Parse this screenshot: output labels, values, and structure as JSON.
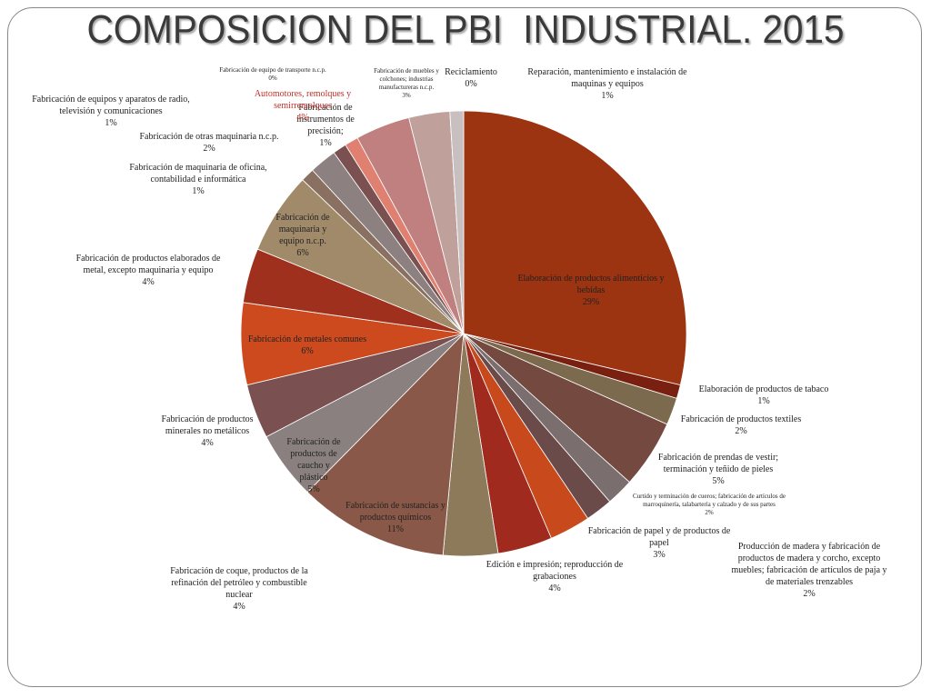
{
  "chart_data": {
    "type": "pie",
    "title": "COMPOSICION DEL PBI  INDUSTRIAL. 2015",
    "categories": [
      "Elaboración de productos alimenticios y bebidas",
      "Elaboración de productos de tabaco",
      "Fabricación de productos textiles",
      "Fabricación de prendas de vestir; terminación y teñido de pieles",
      "Curtido y terminación de cueros; fabricación de artículos de marroquinería, talabartería y calzado y de sus partes",
      "Producción de madera y fabricación de productos de madera y corcho, excepto muebles; fabricación de artículos de paja y de materiales trenzables",
      "Fabricación de papel y de  productos de papel",
      "Edición e impresión; reproducción de grabaciones",
      "Fabricación de coque, productos de la refinación del petróleo y combustible nuclear",
      "Fabricación de sustancias y productos químicos",
      "Fabricación de productos de caucho y plástico",
      "Fabricación de productos minerales no metálicos",
      "Fabricación de metales comunes",
      "Fabricación de productos elaborados de metal, excepto maquinaria y equipo",
      "Fabricación de maquinaria y equipo n.c.p.",
      "Fabricación de maquinaria de oficina, contabilidad e informática",
      "Fabricación de  otras maquinaria   n.c.p.",
      "Fabricación de equipos y aparatos de radio, televisión y comunicaciones",
      "Fabricación de instrumentos de precisión;",
      "Automotores, remolques y semirremolques",
      "Fabricación de equipo de transporte n.c.p.",
      "Fabricación de muebles y colchones; industrias manufactureras n.c.p.",
      "Reciclamiento",
      "Reparación, mantenimiento e instalación de maquinas y equipos"
    ],
    "values": [
      29,
      1,
      2,
      5,
      2,
      2,
      3,
      4,
      4,
      11,
      5,
      4,
      6,
      4,
      6,
      1,
      2,
      1,
      1,
      4,
      0,
      3,
      0,
      1
    ],
    "value_labels": [
      "29%",
      "1%",
      "2%",
      "5%",
      "2%",
      "2%",
      "3%",
      "4%",
      "4%",
      "11%",
      "5%",
      "4%",
      "6%",
      "4%",
      "6%",
      "1%",
      "2%",
      "1%",
      "1%",
      "4%",
      "0%",
      "3%",
      "0%",
      "1%"
    ],
    "colors": [
      "#9c3311",
      "#7a2010",
      "#7c6a4e",
      "#744a40",
      "#7b6e6e",
      "#6b4a4a",
      "#c84a1c",
      "#a02a1e",
      "#8c7a5a",
      "#8a5848",
      "#8a8080",
      "#7a5050",
      "#cc4a1e",
      "#a0301e",
      "#a08a6a",
      "#8a7060",
      "#8c8080",
      "#7a5050",
      "#e08070",
      "#c08080",
      "#a09080",
      "#c0a09a",
      "#b0a0a0",
      "#c8c0c0"
    ]
  }
}
